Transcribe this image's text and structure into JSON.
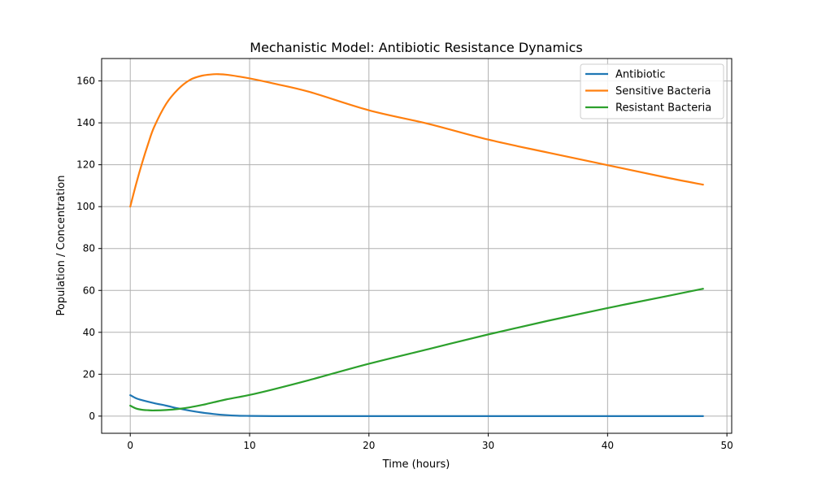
{
  "chart_data": {
    "type": "line",
    "title": "Mechanistic Model: Antibiotic Resistance Dynamics",
    "xlabel": "Time (hours)",
    "ylabel": "Population / Concentration",
    "xlim": [
      -2.4,
      50.4
    ],
    "ylim": [
      -8.2,
      170.7
    ],
    "xticks": [
      0,
      10,
      20,
      30,
      40,
      50
    ],
    "yticks": [
      0,
      20,
      40,
      60,
      80,
      100,
      120,
      140,
      160
    ],
    "grid": true,
    "legend_position": "top-right",
    "series": [
      {
        "name": "Antibiotic",
        "color": "#1f77b4",
        "x": [
          0,
          0.5,
          1,
          2,
          3,
          4,
          5,
          6,
          7,
          8,
          9,
          10,
          12,
          15,
          20,
          30,
          40,
          48
        ],
        "y": [
          10,
          8.5,
          7.6,
          6.2,
          5.0,
          3.7,
          2.6,
          1.7,
          1.0,
          0.5,
          0.2,
          0.1,
          0,
          0,
          0,
          0,
          0,
          0
        ]
      },
      {
        "name": "Sensitive Bacteria",
        "color": "#ff7f0e",
        "x": [
          0,
          0.5,
          1,
          1.5,
          2,
          3,
          4,
          5,
          6,
          7,
          7.5,
          8,
          9,
          10,
          12,
          15,
          20,
          25,
          30,
          35,
          40,
          45,
          48
        ],
        "y": [
          100,
          111,
          121,
          130,
          138,
          149,
          156,
          160.5,
          162.5,
          163.2,
          163.2,
          163.0,
          162.2,
          161.2,
          158.8,
          154.8,
          146.0,
          139.5,
          132.0,
          125.8,
          119.8,
          113.8,
          110.5
        ]
      },
      {
        "name": "Resistant Bacteria",
        "color": "#2ca02c",
        "x": [
          0,
          0.5,
          1,
          1.5,
          2,
          3,
          4,
          5,
          6,
          7,
          8,
          9,
          10,
          12,
          15,
          20,
          25,
          30,
          35,
          40,
          45,
          48
        ],
        "y": [
          5,
          3.6,
          3.0,
          2.8,
          2.7,
          2.9,
          3.4,
          4.2,
          5.3,
          6.6,
          7.9,
          9.0,
          10.1,
          12.8,
          17.2,
          25.0,
          32.0,
          39.0,
          45.5,
          51.6,
          57.3,
          60.8
        ]
      }
    ]
  }
}
